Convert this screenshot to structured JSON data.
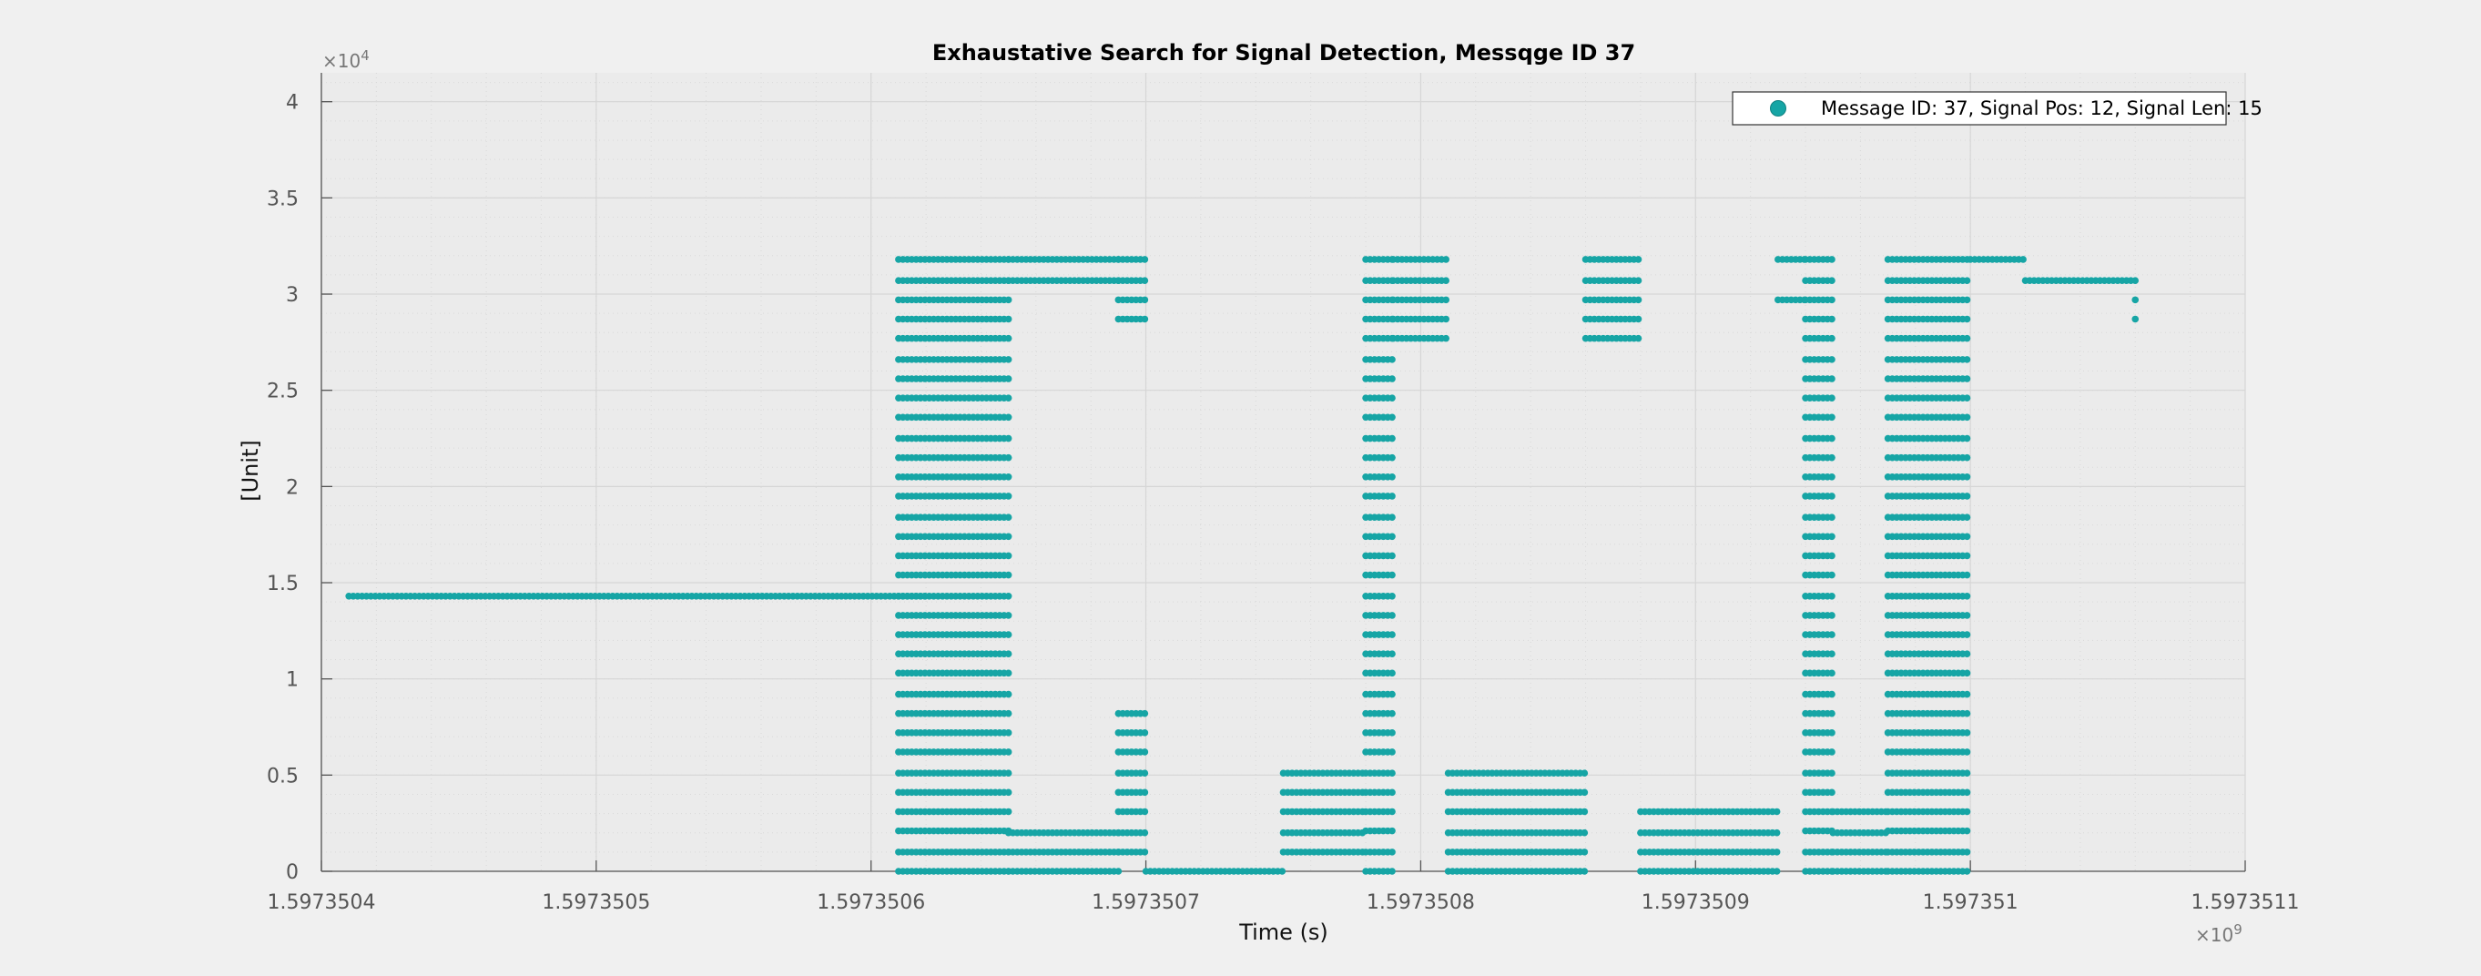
{
  "chart_data": {
    "type": "scatter",
    "title": "Exhaustative Search for Signal Detection, Messqge ID 37",
    "xlabel": "Time (s)",
    "ylabel": "[Unit]",
    "x_multiplier_label": "×10",
    "x_multiplier_exp": "9",
    "y_multiplier_label": "×10",
    "y_multiplier_exp": "4",
    "xlim": [
      1.5973504,
      1.5973511
    ],
    "ylim": [
      0,
      4.15
    ],
    "x_ticks": [
      1.5973504,
      1.5973505,
      1.5973506,
      1.5973507,
      1.5973508,
      1.5973509,
      1.597351,
      1.5973511
    ],
    "x_tick_labels": [
      "1.5973504",
      "1.5973505",
      "1.5973506",
      "1.5973507",
      "1.5973508",
      "1.5973509",
      "1.597351",
      "1.5973511"
    ],
    "y_ticks": [
      0,
      0.5,
      1,
      1.5,
      2,
      2.5,
      3,
      3.5,
      4
    ],
    "y_tick_labels": [
      "0",
      "0.5",
      "1",
      "1.5",
      "2",
      "2.5",
      "3",
      "3.5",
      "4"
    ],
    "grid": true,
    "minor_grid": true,
    "legend_position": "top-right",
    "marker_color": "#16a5a5",
    "series": [
      {
        "name": "Message ID: 37, Signal Pos: 12, Signal Len: 15",
        "segments": [
          {
            "x_start": 1.59735041,
            "x_end": 1.59735062,
            "y": [
              1.43
            ]
          },
          {
            "x_start": 1.59735061,
            "x_end": 1.59735065,
            "y": [
              0.0,
              0.1,
              0.21,
              0.31,
              0.41,
              0.51,
              0.62,
              0.72,
              0.82,
              0.92,
              1.03,
              1.13,
              1.23,
              1.33,
              1.43,
              1.54,
              1.64,
              1.74,
              1.84,
              1.95,
              2.05,
              2.15,
              2.25,
              2.36,
              2.46,
              2.56,
              2.66,
              2.77,
              2.87,
              2.97,
              3.07,
              3.18
            ]
          },
          {
            "x_start": 1.59735065,
            "x_end": 1.59735069,
            "y": [
              0.0,
              0.1,
              0.2,
              3.07,
              3.18
            ]
          },
          {
            "x_start": 1.59735069,
            "x_end": 1.5973507,
            "y": [
              0.1,
              0.2,
              0.31,
              0.41,
              0.51,
              0.62,
              0.72,
              0.82,
              2.87,
              2.97,
              3.07,
              3.18
            ]
          },
          {
            "x_start": 1.5973507,
            "x_end": 1.59735075,
            "y": [
              0.0
            ]
          },
          {
            "x_start": 1.59735075,
            "x_end": 1.59735078,
            "y": [
              0.1,
              0.2,
              0.31,
              0.41,
              0.51
            ]
          },
          {
            "x_start": 1.59735078,
            "x_end": 1.59735079,
            "y": [
              0.0,
              0.1,
              0.21,
              0.31,
              0.41,
              0.51,
              0.62,
              0.72,
              0.82,
              0.92,
              1.03,
              1.13,
              1.23,
              1.33,
              1.43,
              1.54,
              1.64,
              1.74,
              1.84,
              1.95,
              2.05,
              2.15,
              2.25,
              2.36,
              2.46,
              2.56,
              2.66,
              2.77,
              2.87,
              2.97,
              3.07,
              3.18
            ]
          },
          {
            "x_start": 1.59735079,
            "x_end": 1.59735081,
            "y": [
              2.77,
              2.87,
              2.97,
              3.07,
              3.18
            ]
          },
          {
            "x_start": 1.59735081,
            "x_end": 1.59735086,
            "y": [
              0.0,
              0.1,
              0.2,
              0.31,
              0.41,
              0.51
            ]
          },
          {
            "x_start": 1.59735086,
            "x_end": 1.59735088,
            "y": [
              2.77,
              2.87,
              2.97,
              3.07,
              3.18
            ]
          },
          {
            "x_start": 1.59735088,
            "x_end": 1.59735093,
            "y": [
              0.0,
              0.1,
              0.2,
              0.31
            ]
          },
          {
            "x_start": 1.59735093,
            "x_end": 1.59735094,
            "y": [
              2.97,
              3.18
            ]
          },
          {
            "x_start": 1.59735094,
            "x_end": 1.59735095,
            "y": [
              0.0,
              0.1,
              0.21,
              0.31,
              0.41,
              0.51,
              0.62,
              0.72,
              0.82,
              0.92,
              1.03,
              1.13,
              1.23,
              1.33,
              1.43,
              1.54,
              1.64,
              1.74,
              1.84,
              1.95,
              2.05,
              2.15,
              2.25,
              2.36,
              2.46,
              2.56,
              2.66,
              2.77,
              2.87,
              2.97,
              3.07,
              3.18
            ]
          },
          {
            "x_start": 1.59735095,
            "x_end": 1.59735097,
            "y": [
              0.0,
              0.1,
              0.2,
              0.31
            ]
          },
          {
            "x_start": 1.59735097,
            "x_end": 1.597351,
            "y": [
              0.0,
              0.1,
              0.21,
              0.31,
              0.41,
              0.51,
              0.62,
              0.72,
              0.82,
              0.92,
              1.03,
              1.13,
              1.23,
              1.33,
              1.43,
              1.54,
              1.64,
              1.74,
              1.84,
              1.95,
              2.05,
              2.15,
              2.25,
              2.36,
              2.46,
              2.56,
              2.66,
              2.77,
              2.87,
              2.97,
              3.07,
              3.18
            ]
          },
          {
            "x_start": 1.597351,
            "x_end": 1.59735102,
            "y": [
              3.18
            ]
          },
          {
            "x_start": 1.59735102,
            "x_end": 1.59735106,
            "y": [
              3.07
            ]
          },
          {
            "x_start": 1.59735106,
            "x_end": 1.59735106,
            "y": [
              2.87,
              2.97
            ]
          }
        ]
      }
    ]
  }
}
